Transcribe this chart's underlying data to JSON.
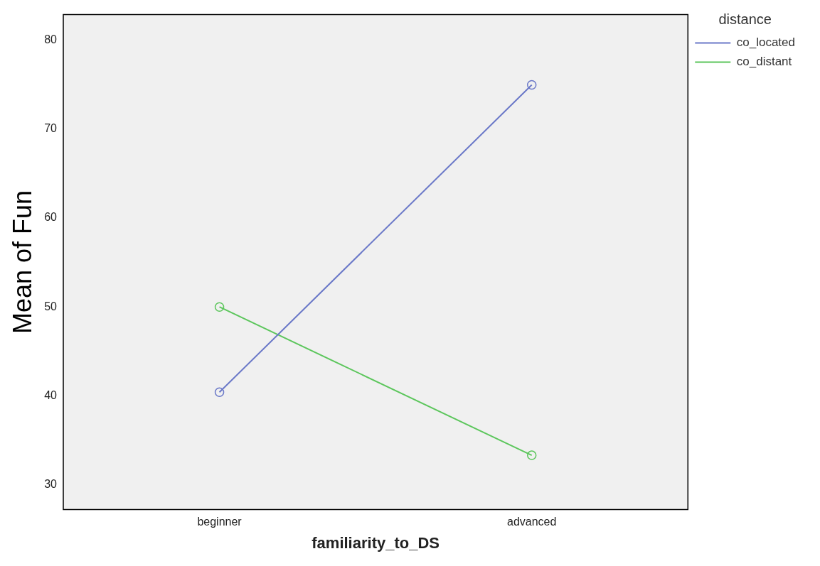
{
  "chart_data": {
    "type": "line",
    "xlabel": "familiarity_to_DS",
    "ylabel": "Mean of Fun",
    "legend_title": "distance",
    "categories": [
      "beginner",
      "advanced"
    ],
    "series": [
      {
        "name": "co_located",
        "color": "#6a78c8",
        "values": [
          40.4,
          75.0
        ]
      },
      {
        "name": "co_distant",
        "color": "#5cc65c",
        "values": [
          50.0,
          33.3
        ]
      }
    ],
    "ylim": [
      27.2,
      82.9
    ],
    "yticks": [
      30,
      40,
      50,
      60,
      70,
      80
    ],
    "grid": false,
    "legend": "top right",
    "marker": "circle",
    "line_style": "solid"
  }
}
